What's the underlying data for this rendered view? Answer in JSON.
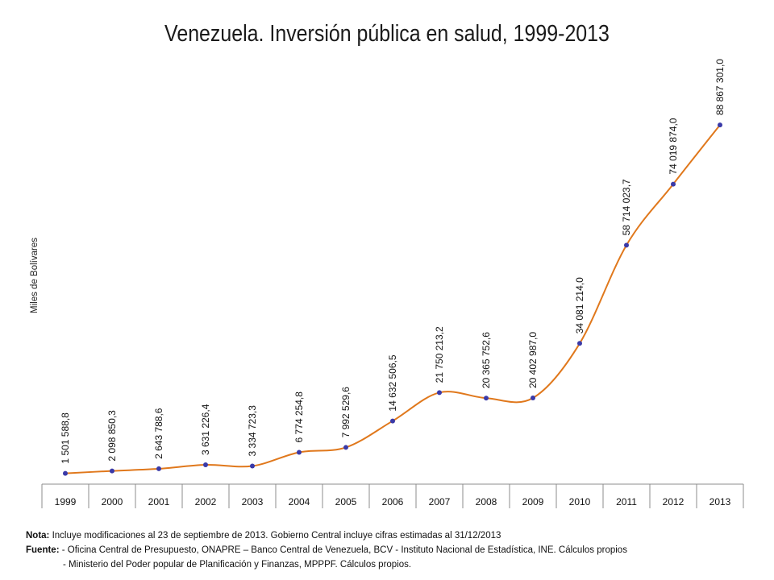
{
  "page": {
    "title": "Venezuela. Inversión pública en salud, 1999-2013"
  },
  "chart_data": {
    "type": "line",
    "title": "Venezuela. Inversión pública en salud, 1999-2013",
    "xlabel": "",
    "ylabel": "Miles de Bolívares",
    "categories": [
      "1999",
      "2000",
      "2001",
      "2002",
      "2003",
      "2004",
      "2005",
      "2006",
      "2007",
      "2008",
      "2009",
      "2010",
      "2011",
      "2012",
      "2013"
    ],
    "series": [
      {
        "values": [
          1501588.8,
          2098850.3,
          2643788.6,
          3631226.4,
          3334723.3,
          6774254.8,
          7992529.6,
          14632506.5,
          21750213.2,
          20365752.6,
          20402987.0,
          34081214.0,
          58714023.7,
          74019874.0,
          88867301.0
        ],
        "labels": [
          "1 501 588,8",
          "2 098 850,3",
          "2 643 788,6",
          "3 631 226,4",
          "3 334 723,3",
          "6 774 254,8",
          "7 992 529,6",
          "14 632 506,5",
          "21 750 213,2",
          "20 365 752,6",
          "20 402 987,0",
          "34 081 214,0",
          "58 714 023,7",
          "74 019 874,0",
          "88 867 301,0"
        ]
      }
    ],
    "ylim": [
      0,
      100000000
    ],
    "grid": false,
    "line_color": "#e0781c",
    "marker_color": "#3a3aa8"
  },
  "notes": {
    "nota_label": "Nota:",
    "nota_text": " Incluye modificaciones al 23 de septiembre de 2013. Gobierno Central incluye cifras estimadas al 31/12/2013",
    "fuente_label": "Fuente:",
    "fuente_line1": " - Oficina Central de Presupuesto, ONAPRE – Banco Central de Venezuela, BCV  - Instituto Nacional de Estadística, INE. Cálculos propios",
    "fuente_line2": "- Ministerio del Poder popular de Planificación y Finanzas, MPPPF. Cálculos propios."
  }
}
